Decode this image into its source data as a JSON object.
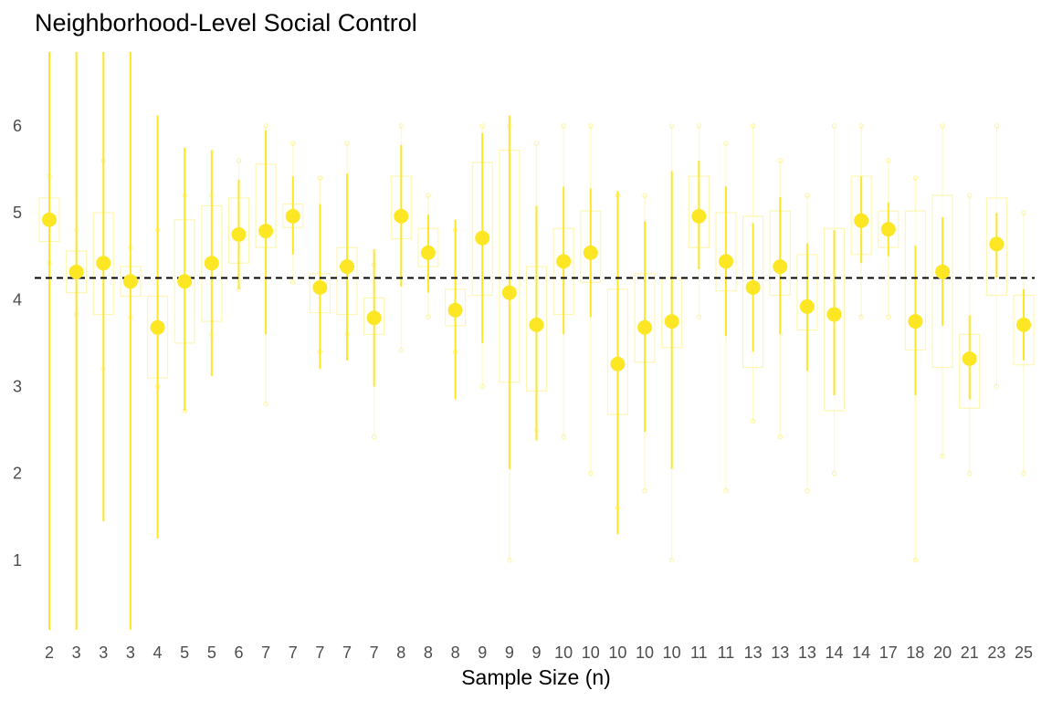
{
  "chart_data": {
    "type": "pointrange",
    "title": "Neighborhood-Level Social Control",
    "xlabel": "Sample Size (n)",
    "ylabel": "",
    "ylim": [
      0.2,
      6.85
    ],
    "yticks": [
      1,
      2,
      3,
      4,
      5,
      6
    ],
    "reference_line": 4.25,
    "grid": false,
    "colors": {
      "point": "#FDE725",
      "range": "#FDE725",
      "box": "#FDE725",
      "ref": "#000000"
    },
    "categories": [
      "2",
      "3",
      "3",
      "3",
      "4",
      "5",
      "5",
      "6",
      "7",
      "7",
      "7",
      "7",
      "7",
      "8",
      "8",
      "8",
      "9",
      "9",
      "9",
      "10",
      "10",
      "10",
      "10",
      "10",
      "11",
      "11",
      "13",
      "13",
      "13",
      "14",
      "14",
      "17",
      "18",
      "20",
      "21",
      "23",
      "25"
    ],
    "means": [
      4.92,
      4.32,
      4.42,
      4.21,
      3.68,
      4.21,
      4.42,
      4.75,
      4.79,
      4.96,
      4.14,
      4.38,
      3.79,
      4.96,
      4.54,
      3.88,
      4.71,
      4.08,
      3.71,
      4.44,
      4.54,
      3.26,
      3.68,
      3.75,
      4.96,
      4.44,
      4.14,
      4.38,
      3.92,
      3.83,
      4.91,
      4.81,
      3.75,
      4.32,
      3.32,
      4.64,
      3.71
    ],
    "ci_low": [
      0.2,
      0.2,
      1.45,
      0.2,
      1.25,
      2.72,
      3.12,
      4.12,
      3.6,
      4.52,
      3.2,
      3.3,
      3.0,
      4.15,
      4.08,
      2.85,
      3.5,
      2.05,
      2.38,
      3.6,
      3.8,
      1.3,
      2.48,
      2.05,
      4.35,
      3.58,
      3.4,
      3.6,
      3.18,
      2.9,
      4.42,
      4.5,
      2.9,
      3.7,
      2.85,
      4.25,
      3.3
    ],
    "ci_high": [
      6.85,
      6.85,
      6.85,
      6.85,
      6.12,
      5.75,
      5.72,
      5.38,
      5.95,
      5.42,
      5.1,
      5.45,
      4.58,
      5.78,
      4.98,
      4.92,
      5.92,
      6.12,
      5.08,
      5.3,
      5.28,
      5.25,
      4.9,
      5.48,
      5.6,
      5.3,
      4.88,
      5.18,
      4.65,
      4.8,
      5.42,
      5.12,
      4.62,
      4.95,
      3.82,
      5.0,
      4.12
    ],
    "box_q1": [
      4.67,
      4.08,
      3.83,
      4.04,
      3.1,
      3.5,
      3.75,
      4.42,
      4.6,
      4.83,
      3.85,
      3.83,
      3.6,
      4.7,
      4.38,
      3.7,
      4.05,
      3.05,
      2.95,
      3.83,
      4.2,
      2.68,
      3.28,
      3.45,
      4.6,
      4.1,
      3.22,
      4.05,
      3.65,
      2.72,
      4.52,
      4.6,
      3.42,
      3.22,
      2.75,
      4.05,
      3.25
    ],
    "box_q3": [
      5.17,
      4.56,
      5.0,
      4.38,
      4.04,
      4.92,
      5.08,
      5.17,
      5.56,
      5.1,
      4.3,
      4.6,
      4.02,
      5.42,
      4.82,
      4.12,
      5.58,
      5.72,
      4.38,
      4.82,
      5.02,
      4.12,
      4.3,
      4.25,
      5.42,
      5.0,
      4.96,
      5.02,
      4.52,
      4.82,
      5.42,
      5.02,
      5.02,
      5.2,
      3.6,
      5.17,
      4.05
    ],
    "box_min": [
      4.42,
      3.83,
      3.2,
      3.8,
      3.0,
      2.72,
      3.6,
      4.12,
      2.8,
      4.2,
      3.4,
      3.6,
      2.42,
      3.42,
      3.8,
      3.4,
      3.0,
      1.0,
      2.5,
      2.42,
      2.0,
      1.6,
      1.8,
      1.0,
      3.8,
      1.8,
      2.6,
      2.42,
      1.8,
      2.0,
      3.8,
      3.8,
      1.0,
      2.2,
      2.0,
      3.0,
      2.0
    ],
    "box_max": [
      5.42,
      4.8,
      5.6,
      4.6,
      4.8,
      5.2,
      5.2,
      5.6,
      6.0,
      5.8,
      5.4,
      5.8,
      4.4,
      6.0,
      5.2,
      4.8,
      6.0,
      6.0,
      5.8,
      6.0,
      6.0,
      5.2,
      5.2,
      6.0,
      6.0,
      5.8,
      6.0,
      5.6,
      5.2,
      6.0,
      6.0,
      5.6,
      5.4,
      6.0,
      5.2,
      6.0,
      5.0
    ]
  }
}
